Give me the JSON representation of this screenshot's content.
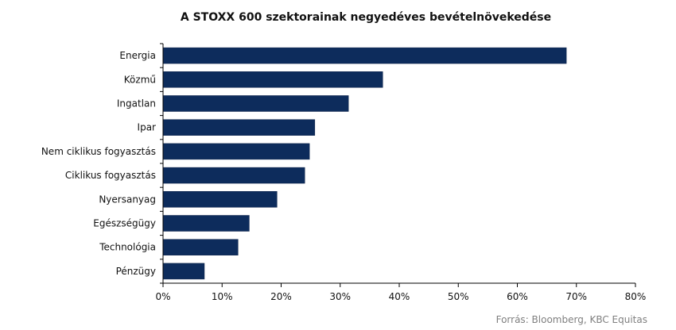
{
  "chart_data": {
    "type": "bar",
    "orientation": "horizontal",
    "title": "A STOXX 600 szektorainak negyedéves bevételnövekedése",
    "categories": [
      "Energia",
      "Közmű",
      "Ingatlan",
      "Ipar",
      "Nem ciklikus fogyasztás",
      "Ciklikus fogyasztás",
      "Nyersanyag",
      "Egészségügy",
      "Technológia",
      "Pénzügy"
    ],
    "values": [
      68.3,
      37.2,
      31.4,
      25.7,
      24.8,
      24.0,
      19.3,
      14.6,
      12.7,
      7.0
    ],
    "unit": "%",
    "xlim": [
      0,
      80
    ],
    "xticks": [
      0,
      10,
      20,
      30,
      40,
      50,
      60,
      70,
      80
    ],
    "xtick_labels": [
      "0%",
      "10%",
      "20%",
      "30%",
      "40%",
      "50%",
      "60%",
      "70%",
      "80%"
    ],
    "grid": false,
    "legend": "none",
    "bar_color": "#0d2c5c"
  },
  "source": "Forrás: Bloomberg,  KBC Equitas"
}
